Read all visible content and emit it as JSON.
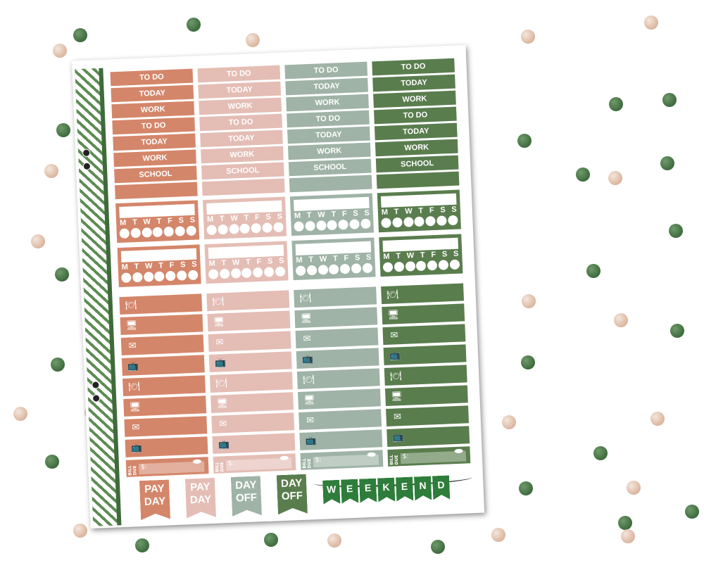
{
  "rows": {
    "to_do": "TO DO",
    "today": "TODAY",
    "work": "WORK",
    "school": "SCHOOL"
  },
  "tracker_days": [
    "M",
    "T",
    "W",
    "T",
    "F",
    "S",
    "S"
  ],
  "icons": [
    "fork-plate-icon",
    "monitor-icon",
    "envelope-icon",
    "tv-icon",
    "fork-plate-icon",
    "monitor-icon",
    "envelope-icon",
    "tv-icon"
  ],
  "bill": {
    "label": "BILL DUE",
    "amount": "$:"
  },
  "flags": {
    "pay": "PAY",
    "day": "DAY",
    "day2": "DAY",
    "off": "OFF"
  },
  "banner": [
    "W",
    "E",
    "E",
    "K",
    "E",
    "N",
    "D"
  ],
  "colors": {
    "terracotta": "#d4866a",
    "blush": "#e4bdb5",
    "sage": "#9fb3a6",
    "forest": "#5a7d4e"
  }
}
